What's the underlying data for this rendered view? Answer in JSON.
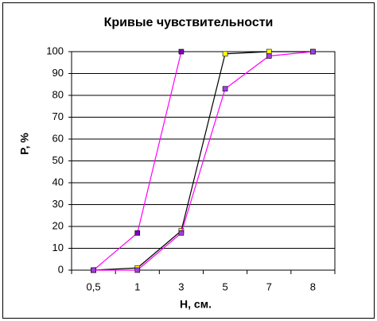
{
  "chart_data": {
    "type": "line",
    "title": "Кривые чувствительности",
    "x_label": "Н, см.",
    "y_label": "Р, %",
    "categories": [
      "0,5",
      "1",
      "3",
      "5",
      "7",
      "8"
    ],
    "series": [
      {
        "color": "#ff00ff",
        "marker_color": "#7f00bf",
        "values": [
          0,
          17,
          100,
          null,
          null,
          null
        ]
      },
      {
        "color": "#000000",
        "marker_color": "#ffff00",
        "values": [
          0,
          1,
          18,
          99,
          100,
          100
        ]
      },
      {
        "color": "#ff00ff",
        "marker_color": "#a040e0",
        "values": [
          0,
          0,
          17,
          83,
          98,
          100
        ]
      }
    ],
    "ylim": [
      0,
      100
    ],
    "yticks": [
      0,
      10,
      20,
      30,
      40,
      50,
      60,
      70,
      80,
      90,
      100
    ],
    "grid": true
  }
}
